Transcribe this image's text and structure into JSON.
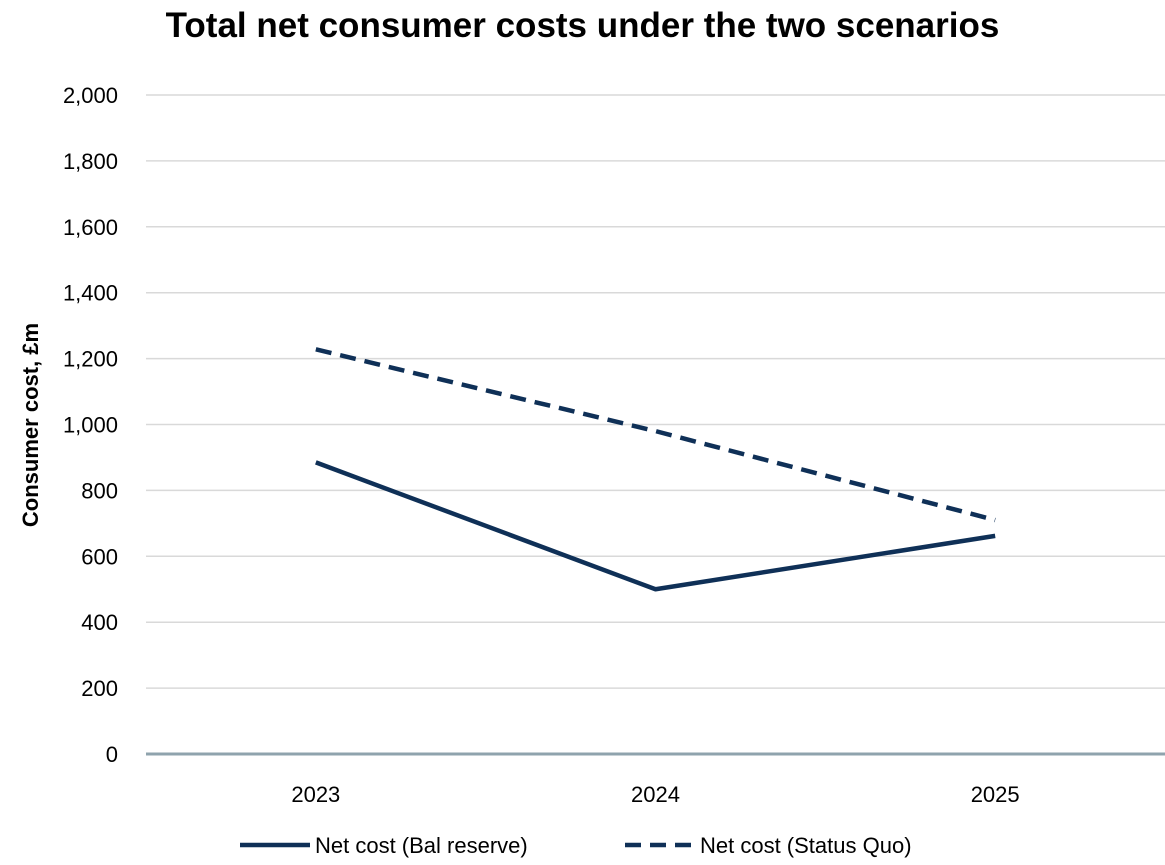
{
  "chart_data": {
    "type": "line",
    "title": "Total net consumer costs under the two scenarios",
    "xlabel": "",
    "ylabel": "Consumer cost, £m",
    "categories": [
      "2023",
      "2024",
      "2025"
    ],
    "ylim": [
      0,
      2000
    ],
    "yticks": [
      0,
      200,
      400,
      600,
      800,
      1000,
      1200,
      1400,
      1600,
      1800,
      2000
    ],
    "ytick_labels": [
      "0",
      "200",
      "400",
      "600",
      "800",
      "1,000",
      "1,200",
      "1,400",
      "1,600",
      "1,800",
      "2,000"
    ],
    "grid": true,
    "legend_position": "bottom",
    "series": [
      {
        "name": "Net cost (Bal reserve)",
        "values": [
          885,
          500,
          662
        ],
        "style": "solid",
        "color": "#0f3057"
      },
      {
        "name": "Net cost (Status Quo)",
        "values": [
          1228,
          980,
          710
        ],
        "style": "dashed",
        "color": "#0f3057"
      }
    ]
  }
}
